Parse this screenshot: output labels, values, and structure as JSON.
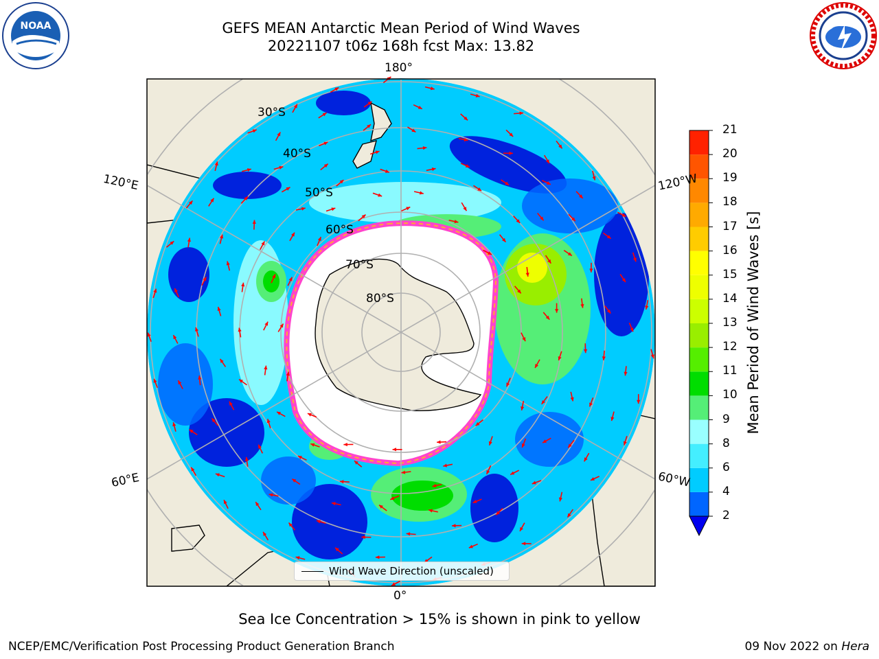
{
  "header": {
    "title_line1": "GEFS MEAN Antarctic Mean Period of Wind Waves",
    "title_line2": "20221107 t06z 168h fcst   Max: 13.82"
  },
  "logos": {
    "left_name": "noaa-logo",
    "left_text": "NOAA",
    "right_name": "national-weather-service-logo"
  },
  "map": {
    "projection": "south-polar-stereographic",
    "meridian_labels": [
      "180°",
      "120°E",
      "120°W",
      "60°E",
      "60°W",
      "0°"
    ],
    "parallel_labels": [
      "30°S",
      "40°S",
      "50°S",
      "60°S",
      "70°S",
      "80°S"
    ],
    "legend_label": "Wind Wave Direction (unscaled)",
    "arrow_color": "#ff0000"
  },
  "colorbar": {
    "label": "Mean Period of Wind Waves [s]",
    "ticks": [
      "2",
      "4",
      "6",
      "8",
      "9",
      "10",
      "11",
      "12",
      "13",
      "14",
      "15",
      "16",
      "17",
      "18",
      "19",
      "20",
      "21"
    ],
    "colors": [
      "#0066ff",
      "#00ccff",
      "#44eeff",
      "#99ffff",
      "#55ee77",
      "#00dd00",
      "#55ee00",
      "#99ee00",
      "#ccff00",
      "#eeff00",
      "#ffff00",
      "#ffcc00",
      "#ffaa00",
      "#ff8800",
      "#ff5500",
      "#ff2200",
      "#ff0000"
    ],
    "extend_color": "#0000ee"
  },
  "caption": "Sea Ice Concentration > 15% is shown in pink to yellow",
  "footer": {
    "left": "NCEP/EMC/Verification Post Processing Product Generation Branch",
    "right_date": "09 Nov 2022 on ",
    "right_machine": "Hera"
  }
}
